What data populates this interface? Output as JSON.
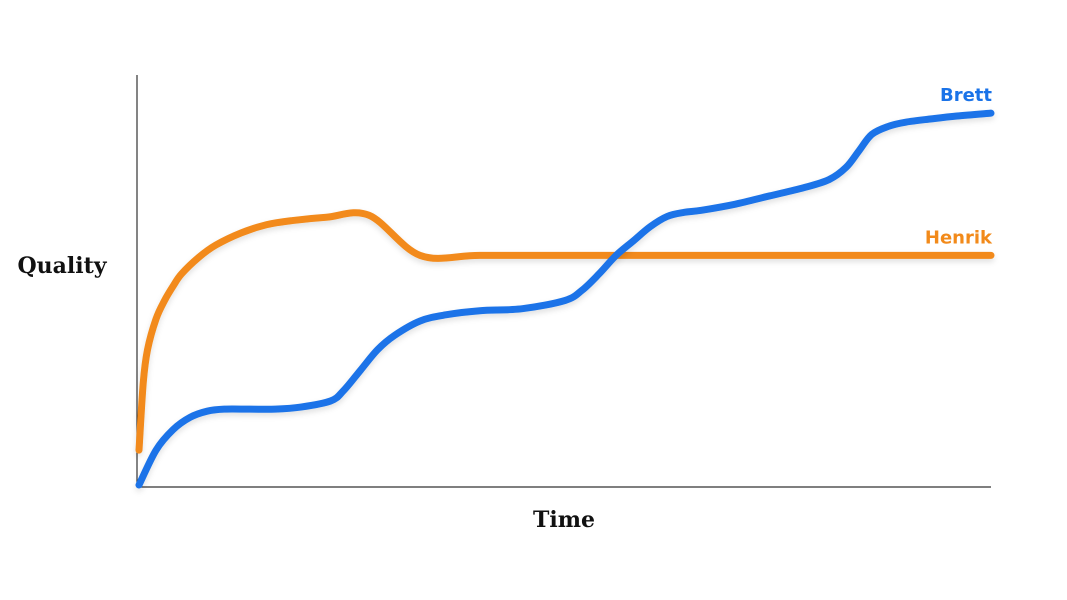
{
  "chart_data": {
    "type": "line",
    "title": "",
    "xlabel": "Time",
    "ylabel": "Quality",
    "xlim": [
      0,
      100
    ],
    "ylim": [
      0,
      100
    ],
    "grid": false,
    "legend": "inline labels at right end of each line",
    "series": [
      {
        "name": "Brett",
        "color": "#1A73E8",
        "x": [
          0,
          2,
          4,
          6,
          8,
          10,
          13,
          16,
          19,
          22.5,
          24,
          26,
          28,
          30,
          33,
          36,
          40,
          45,
          50,
          52,
          54,
          56,
          58,
          60,
          62,
          64,
          66,
          70,
          74,
          78,
          81,
          83,
          84.5,
          86,
          88,
          90,
          93,
          96,
          100
        ],
        "y": [
          0,
          8.5,
          13.5,
          16.5,
          18,
          18.5,
          18.5,
          18.5,
          19,
          20.5,
          23,
          28,
          33,
          36.5,
          40,
          41.5,
          42.5,
          43,
          45,
          47.5,
          51.5,
          56,
          59.5,
          63,
          65.5,
          66.5,
          67,
          68.5,
          70.5,
          72.5,
          74.5,
          77.5,
          81.5,
          85.5,
          87.5,
          88.5,
          89.3,
          90,
          90.7
        ]
      },
      {
        "name": "Henrik",
        "color": "#F28A1A",
        "x": [
          0,
          0.5,
          1,
          2,
          3,
          4,
          5,
          7,
          9,
          12,
          15,
          18,
          22,
          27,
          33,
          40,
          50,
          60,
          70,
          80,
          90,
          100
        ],
        "y": [
          8.5,
          25,
          33,
          40.5,
          45,
          48.5,
          51.5,
          55.5,
          58.5,
          61.5,
          63.5,
          64.5,
          65.3,
          65.8,
          56.0,
          56.0,
          56.0,
          56.0,
          56.0,
          56.0,
          56.0,
          56.0
        ]
      }
    ]
  }
}
